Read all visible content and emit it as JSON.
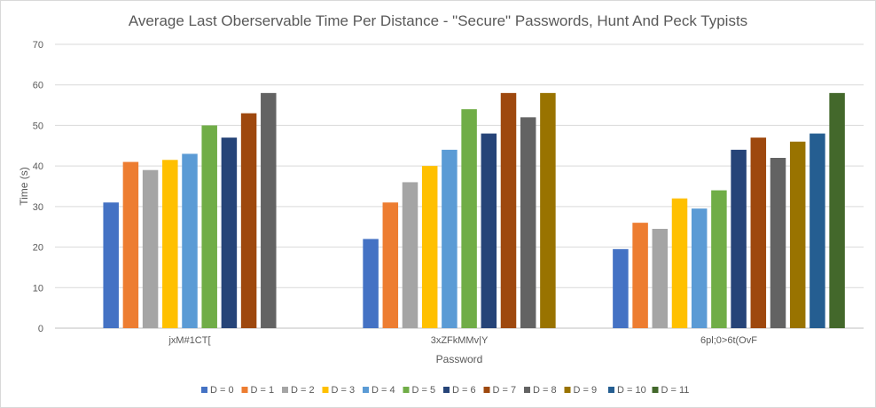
{
  "chart_data": {
    "type": "bar",
    "title": "Average Last Oberservable Time Per Distance - \"Secure\" Passwords, Hunt And Peck Typists",
    "xlabel": "Password",
    "ylabel": "Time (s)",
    "ylim": [
      0,
      70
    ],
    "yticks": [
      0,
      10,
      20,
      30,
      40,
      50,
      60,
      70
    ],
    "grid": true,
    "legend_position": "bottom",
    "categories": [
      "jxM#1CT[",
      "3xZFkMMv|Y",
      "6pl;0>6t(OvF"
    ],
    "series": [
      {
        "name": "D = 0",
        "color": "#4472c4",
        "values": [
          31,
          22,
          19.5
        ]
      },
      {
        "name": "D = 1",
        "color": "#ed7d31",
        "values": [
          41,
          31,
          26
        ]
      },
      {
        "name": "D = 2",
        "color": "#a5a5a5",
        "values": [
          39,
          36,
          24.5
        ]
      },
      {
        "name": "D = 3",
        "color": "#ffc000",
        "values": [
          41.5,
          40,
          32
        ]
      },
      {
        "name": "D = 4",
        "color": "#5b9bd5",
        "values": [
          43,
          44,
          29.5
        ]
      },
      {
        "name": "D = 5",
        "color": "#70ad47",
        "values": [
          50,
          54,
          34
        ]
      },
      {
        "name": "D = 6",
        "color": "#264478",
        "values": [
          47,
          48,
          44
        ]
      },
      {
        "name": "D = 7",
        "color": "#9e480e",
        "values": [
          53,
          58,
          47
        ]
      },
      {
        "name": "D = 8",
        "color": "#636363",
        "values": [
          58,
          52,
          42
        ]
      },
      {
        "name": "D = 9",
        "color": "#997300",
        "values": [
          null,
          58,
          46
        ]
      },
      {
        "name": "D = 10",
        "color": "#255e91",
        "values": [
          null,
          null,
          48
        ]
      },
      {
        "name": "D = 11",
        "color": "#43682b",
        "values": [
          null,
          null,
          58
        ]
      }
    ]
  }
}
